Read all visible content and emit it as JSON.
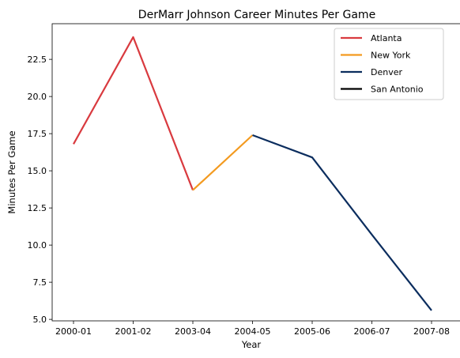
{
  "chart_data": {
    "type": "line",
    "title": "DerMarr Johnson Career Minutes Per Game",
    "xlabel": "Year",
    "ylabel": "Minutes Per Game",
    "categories": [
      "2000-01",
      "2001-02",
      "2003-04",
      "2004-05",
      "2005-06",
      "2006-07",
      "2007-08"
    ],
    "ylim": [
      4.9,
      24.9
    ],
    "yticks": [
      5.0,
      7.5,
      10.0,
      12.5,
      15.0,
      17.5,
      20.0,
      22.5
    ],
    "ytick_labels": [
      "5.0",
      "7.5",
      "10.0",
      "12.5",
      "15.0",
      "17.5",
      "20.0",
      "22.5"
    ],
    "grid": false,
    "legend_position": "top-right",
    "series": [
      {
        "name": "Atlanta",
        "color": "#d93a3f",
        "x": [
          "2000-01",
          "2001-02",
          "2003-04"
        ],
        "values": [
          16.8,
          24.0,
          13.7
        ]
      },
      {
        "name": "New York",
        "color": "#f39a1f",
        "x": [
          "2003-04",
          "2004-05"
        ],
        "values": [
          13.7,
          17.4
        ]
      },
      {
        "name": "Denver",
        "color": "#0b2d5e",
        "x": [
          "2004-05",
          "2005-06",
          "2006-07",
          "2007-08"
        ],
        "values": [
          17.4,
          15.9,
          10.7,
          5.6
        ]
      },
      {
        "name": "San Antonio",
        "color": "#000000",
        "x": [],
        "values": []
      }
    ]
  }
}
